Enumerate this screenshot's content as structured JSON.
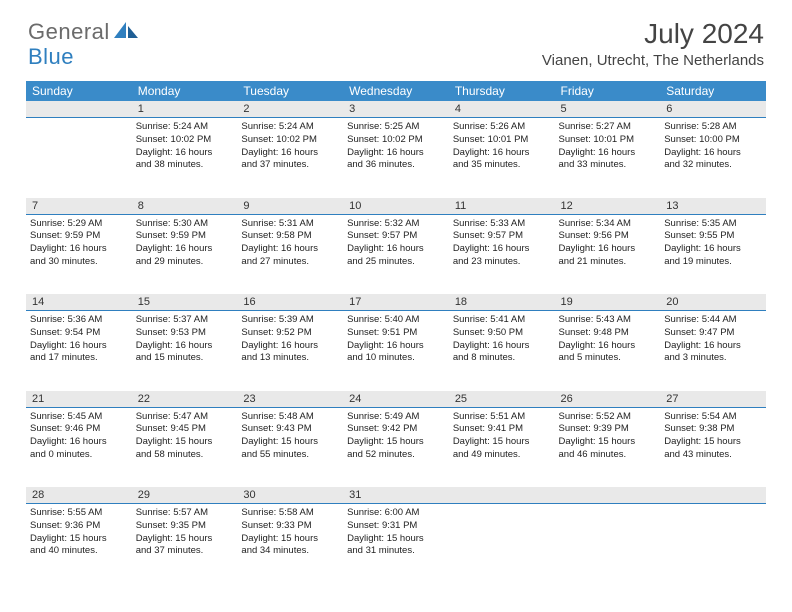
{
  "logo": {
    "part1": "General",
    "part2": "Blue"
  },
  "title": "July 2024",
  "location": "Vianen, Utrecht, The Netherlands",
  "colors": {
    "header_bg": "#3a8bc9",
    "header_text": "#ffffff",
    "daynum_bg": "#e9e9e9",
    "daynum_border": "#2f7fbf",
    "body_text": "#222222",
    "logo_gray": "#6b6b6b",
    "logo_blue": "#2f7fbf"
  },
  "day_headers": [
    "Sunday",
    "Monday",
    "Tuesday",
    "Wednesday",
    "Thursday",
    "Friday",
    "Saturday"
  ],
  "weeks": [
    {
      "nums": [
        "",
        "1",
        "2",
        "3",
        "4",
        "5",
        "6"
      ],
      "cells": [
        null,
        {
          "sunrise": "Sunrise: 5:24 AM",
          "sunset": "Sunset: 10:02 PM",
          "day1": "Daylight: 16 hours",
          "day2": "and 38 minutes."
        },
        {
          "sunrise": "Sunrise: 5:24 AM",
          "sunset": "Sunset: 10:02 PM",
          "day1": "Daylight: 16 hours",
          "day2": "and 37 minutes."
        },
        {
          "sunrise": "Sunrise: 5:25 AM",
          "sunset": "Sunset: 10:02 PM",
          "day1": "Daylight: 16 hours",
          "day2": "and 36 minutes."
        },
        {
          "sunrise": "Sunrise: 5:26 AM",
          "sunset": "Sunset: 10:01 PM",
          "day1": "Daylight: 16 hours",
          "day2": "and 35 minutes."
        },
        {
          "sunrise": "Sunrise: 5:27 AM",
          "sunset": "Sunset: 10:01 PM",
          "day1": "Daylight: 16 hours",
          "day2": "and 33 minutes."
        },
        {
          "sunrise": "Sunrise: 5:28 AM",
          "sunset": "Sunset: 10:00 PM",
          "day1": "Daylight: 16 hours",
          "day2": "and 32 minutes."
        }
      ]
    },
    {
      "nums": [
        "7",
        "8",
        "9",
        "10",
        "11",
        "12",
        "13"
      ],
      "cells": [
        {
          "sunrise": "Sunrise: 5:29 AM",
          "sunset": "Sunset: 9:59 PM",
          "day1": "Daylight: 16 hours",
          "day2": "and 30 minutes."
        },
        {
          "sunrise": "Sunrise: 5:30 AM",
          "sunset": "Sunset: 9:59 PM",
          "day1": "Daylight: 16 hours",
          "day2": "and 29 minutes."
        },
        {
          "sunrise": "Sunrise: 5:31 AM",
          "sunset": "Sunset: 9:58 PM",
          "day1": "Daylight: 16 hours",
          "day2": "and 27 minutes."
        },
        {
          "sunrise": "Sunrise: 5:32 AM",
          "sunset": "Sunset: 9:57 PM",
          "day1": "Daylight: 16 hours",
          "day2": "and 25 minutes."
        },
        {
          "sunrise": "Sunrise: 5:33 AM",
          "sunset": "Sunset: 9:57 PM",
          "day1": "Daylight: 16 hours",
          "day2": "and 23 minutes."
        },
        {
          "sunrise": "Sunrise: 5:34 AM",
          "sunset": "Sunset: 9:56 PM",
          "day1": "Daylight: 16 hours",
          "day2": "and 21 minutes."
        },
        {
          "sunrise": "Sunrise: 5:35 AM",
          "sunset": "Sunset: 9:55 PM",
          "day1": "Daylight: 16 hours",
          "day2": "and 19 minutes."
        }
      ]
    },
    {
      "nums": [
        "14",
        "15",
        "16",
        "17",
        "18",
        "19",
        "20"
      ],
      "cells": [
        {
          "sunrise": "Sunrise: 5:36 AM",
          "sunset": "Sunset: 9:54 PM",
          "day1": "Daylight: 16 hours",
          "day2": "and 17 minutes."
        },
        {
          "sunrise": "Sunrise: 5:37 AM",
          "sunset": "Sunset: 9:53 PM",
          "day1": "Daylight: 16 hours",
          "day2": "and 15 minutes."
        },
        {
          "sunrise": "Sunrise: 5:39 AM",
          "sunset": "Sunset: 9:52 PM",
          "day1": "Daylight: 16 hours",
          "day2": "and 13 minutes."
        },
        {
          "sunrise": "Sunrise: 5:40 AM",
          "sunset": "Sunset: 9:51 PM",
          "day1": "Daylight: 16 hours",
          "day2": "and 10 minutes."
        },
        {
          "sunrise": "Sunrise: 5:41 AM",
          "sunset": "Sunset: 9:50 PM",
          "day1": "Daylight: 16 hours",
          "day2": "and 8 minutes."
        },
        {
          "sunrise": "Sunrise: 5:43 AM",
          "sunset": "Sunset: 9:48 PM",
          "day1": "Daylight: 16 hours",
          "day2": "and 5 minutes."
        },
        {
          "sunrise": "Sunrise: 5:44 AM",
          "sunset": "Sunset: 9:47 PM",
          "day1": "Daylight: 16 hours",
          "day2": "and 3 minutes."
        }
      ]
    },
    {
      "nums": [
        "21",
        "22",
        "23",
        "24",
        "25",
        "26",
        "27"
      ],
      "cells": [
        {
          "sunrise": "Sunrise: 5:45 AM",
          "sunset": "Sunset: 9:46 PM",
          "day1": "Daylight: 16 hours",
          "day2": "and 0 minutes."
        },
        {
          "sunrise": "Sunrise: 5:47 AM",
          "sunset": "Sunset: 9:45 PM",
          "day1": "Daylight: 15 hours",
          "day2": "and 58 minutes."
        },
        {
          "sunrise": "Sunrise: 5:48 AM",
          "sunset": "Sunset: 9:43 PM",
          "day1": "Daylight: 15 hours",
          "day2": "and 55 minutes."
        },
        {
          "sunrise": "Sunrise: 5:49 AM",
          "sunset": "Sunset: 9:42 PM",
          "day1": "Daylight: 15 hours",
          "day2": "and 52 minutes."
        },
        {
          "sunrise": "Sunrise: 5:51 AM",
          "sunset": "Sunset: 9:41 PM",
          "day1": "Daylight: 15 hours",
          "day2": "and 49 minutes."
        },
        {
          "sunrise": "Sunrise: 5:52 AM",
          "sunset": "Sunset: 9:39 PM",
          "day1": "Daylight: 15 hours",
          "day2": "and 46 minutes."
        },
        {
          "sunrise": "Sunrise: 5:54 AM",
          "sunset": "Sunset: 9:38 PM",
          "day1": "Daylight: 15 hours",
          "day2": "and 43 minutes."
        }
      ]
    },
    {
      "nums": [
        "28",
        "29",
        "30",
        "31",
        "",
        "",
        ""
      ],
      "cells": [
        {
          "sunrise": "Sunrise: 5:55 AM",
          "sunset": "Sunset: 9:36 PM",
          "day1": "Daylight: 15 hours",
          "day2": "and 40 minutes."
        },
        {
          "sunrise": "Sunrise: 5:57 AM",
          "sunset": "Sunset: 9:35 PM",
          "day1": "Daylight: 15 hours",
          "day2": "and 37 minutes."
        },
        {
          "sunrise": "Sunrise: 5:58 AM",
          "sunset": "Sunset: 9:33 PM",
          "day1": "Daylight: 15 hours",
          "day2": "and 34 minutes."
        },
        {
          "sunrise": "Sunrise: 6:00 AM",
          "sunset": "Sunset: 9:31 PM",
          "day1": "Daylight: 15 hours",
          "day2": "and 31 minutes."
        },
        null,
        null,
        null
      ]
    }
  ]
}
